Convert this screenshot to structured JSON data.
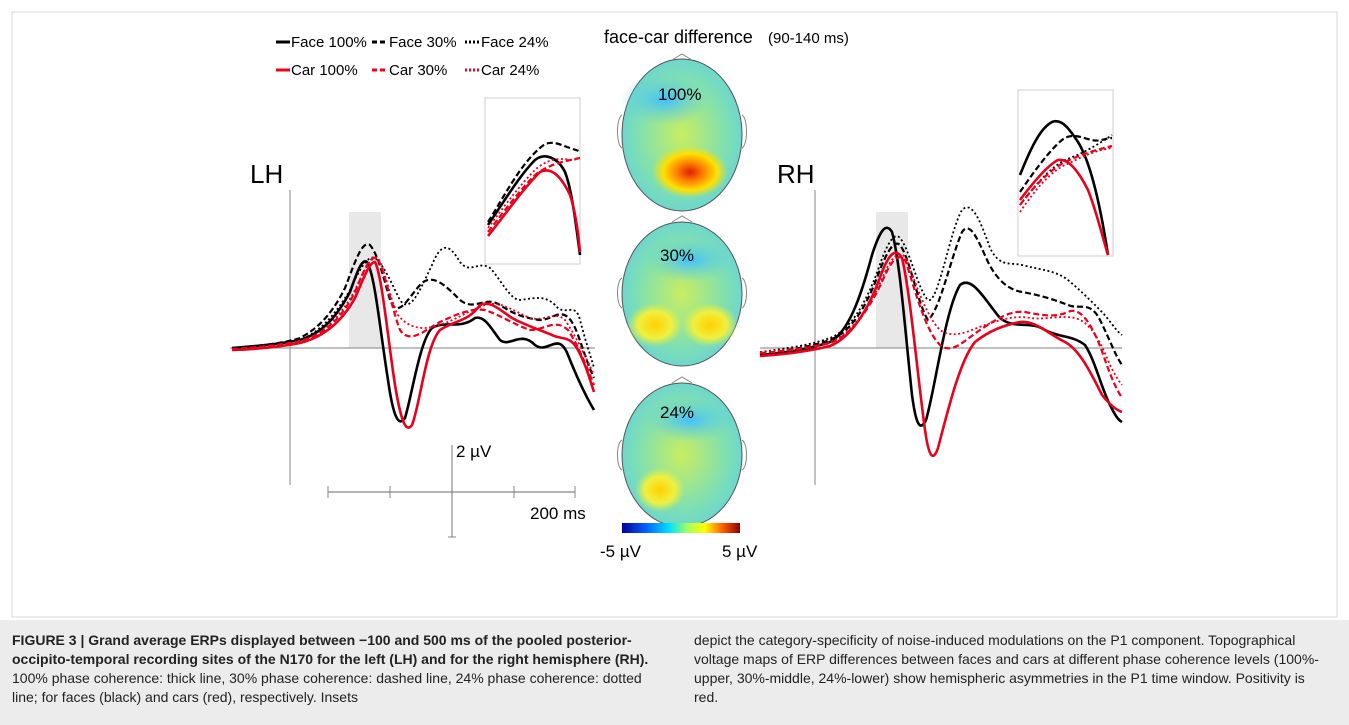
{
  "figure": {
    "legend": {
      "face100": "Face 100%",
      "face30": "Face 30%",
      "face24": "Face 24%",
      "car100": "Car 100%",
      "car30": "Car 30%",
      "car24": "Car 24%"
    },
    "colors": {
      "face": "#000000",
      "car": "#e8001c",
      "stim_window": "#e8e8e8"
    },
    "left_label": "LH",
    "right_label": "RH",
    "topo_title": "face-car difference",
    "topo_title_window": "(90-140 ms)",
    "topo_levels": [
      "100%",
      "30%",
      "24%"
    ],
    "scale_voltage": "2 µV",
    "scale_time": "200 ms",
    "colorbar_min": "-5 µV",
    "colorbar_max": "5 µV"
  },
  "caption": {
    "label": "FIGURE 3 | Grand average ERPs displayed between −100 and 500 ms of the pooled posterior-occipito-temporal recording sites of the N170 for the left (LH) and for the right hemisphere (RH).",
    "body_left": " 100% phase coherence: thick line, 30% phase coherence: dashed line, 24% phase coherence: dotted line; for faces (black) and cars (red), respectively. Insets",
    "body_right": "depict the category-specificity of noise-induced modulations on the P1 component. Topographical voltage maps of ERP differences between faces and cars at different phase coherence levels (100%-upper, 30%-middle, 24%-lower) show hemispheric asymmetries in the P1 time window. Positivity is red."
  }
}
